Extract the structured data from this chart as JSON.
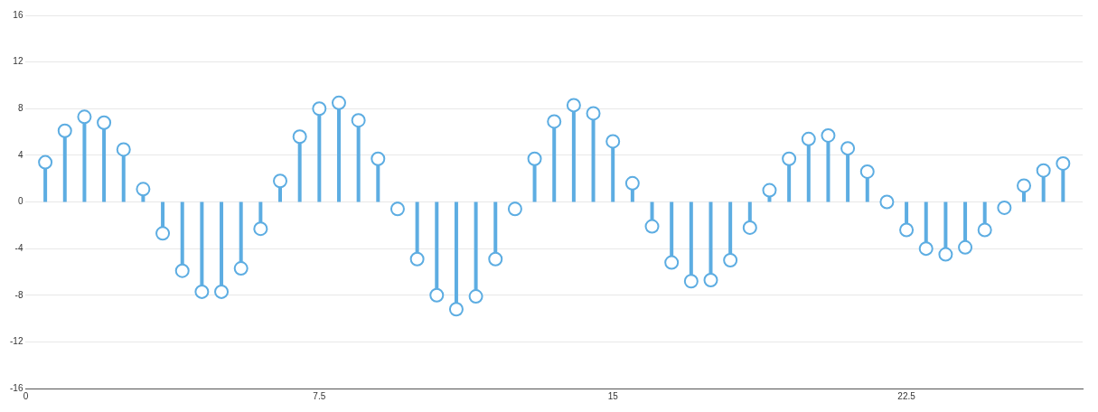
{
  "chart_data": {
    "type": "lollipop",
    "x": [
      0.5,
      1,
      1.5,
      2,
      2.5,
      3,
      3.5,
      4,
      4.5,
      5,
      5.5,
      6,
      6.5,
      7,
      7.5,
      8,
      8.5,
      9,
      9.5,
      10,
      10.5,
      11,
      11.5,
      12,
      12.5,
      13,
      13.5,
      14,
      14.5,
      15,
      15.5,
      16,
      16.5,
      17,
      17.5,
      18,
      18.5,
      19,
      19.5,
      20,
      20.5,
      21,
      21.5,
      22,
      22.5,
      23,
      23.5,
      24,
      24.5,
      25,
      25.5,
      26,
      26.5
    ],
    "series": [
      {
        "color": "#5dade2",
        "values": [
          3.4,
          6.1,
          7.3,
          6.8,
          4.5,
          1.1,
          -2.7,
          -5.9,
          -7.7,
          -7.7,
          -5.7,
          -2.3,
          1.8,
          5.6,
          8.0,
          8.5,
          7.0,
          3.7,
          -0.6,
          -4.9,
          -8.0,
          -9.2,
          -8.1,
          -4.9,
          -0.6,
          3.7,
          6.9,
          8.3,
          7.6,
          5.2,
          1.6,
          -2.1,
          -5.2,
          -6.8,
          -6.7,
          -5.0,
          -2.2,
          1.0,
          3.7,
          5.4,
          5.7,
          4.6,
          2.6,
          0.0,
          -2.4,
          -4.0,
          -4.5,
          -3.9,
          -2.4,
          -0.5,
          1.4,
          2.7,
          3.3
        ]
      }
    ],
    "xlim": [
      0,
      27
    ],
    "xticks": [
      0,
      7.5,
      15,
      22.5
    ],
    "ylim": [
      -16,
      16
    ],
    "yticks": [
      -16,
      -12,
      -8,
      -4,
      0,
      4,
      8,
      12,
      16
    ],
    "grid": "y",
    "marker": "circle",
    "legend": false
  }
}
